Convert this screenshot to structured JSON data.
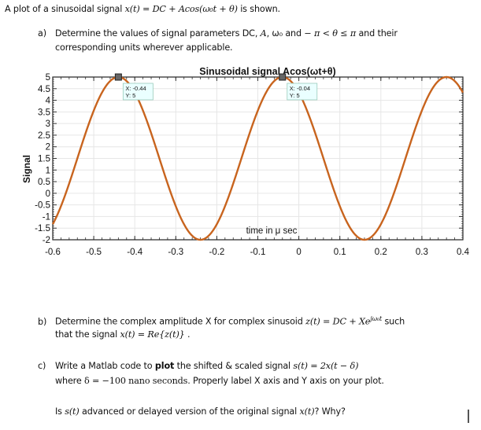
{
  "intro": {
    "prefix": "A plot of a sinusoidal signal ",
    "formula": "x(t) = DC + Acos(ω₀t + θ)",
    "suffix": " is shown."
  },
  "part_a": {
    "letter": "a)",
    "line1_prefix": "Determine the values of signal parameters DC, ",
    "line1_A": "A",
    "line1_mid": ", ω₀ and ",
    "line1_range": "− π < θ ≤ π",
    "line1_suffix": " and their",
    "line2": "corresponding units wherever applicable."
  },
  "part_b": {
    "letter": "b)",
    "line1_prefix": "Determine the complex amplitude X for complex sinusoid ",
    "line1_formula": "z(t) = DC + Xe",
    "line1_sup": "jω₀t",
    "line1_suffix": " such",
    "line2_prefix": "that the signal ",
    "line2_formula": "x(t) = Re{z(t)}",
    "line2_suffix": " ."
  },
  "part_c": {
    "letter": "c)",
    "line1_prefix": "Write a Matlab code to ",
    "line1_bold": "plot",
    "line1_mid": " the shifted & scaled signal ",
    "line1_formula": "s(t) = 2x(t − δ)",
    "line2_prefix": "where ",
    "line2_formula": "δ = −100",
    "line2_mid": " nano seconds.",
    "line2_suffix": " Properly label X axis and Y axis on your plot.",
    "question_prefix": "Is ",
    "question_s": "s(t)",
    "question_mid": " advanced or delayed version of the original signal ",
    "question_x": "x(t)",
    "question_suffix": "? Why?"
  },
  "chart_data": {
    "type": "line",
    "title": "Sinusoidal signal Acos(ωt+θ)",
    "xlabel": "time in μ sec",
    "ylabel": "Signal",
    "xlim": [
      -0.6,
      0.4
    ],
    "ylim": [
      -2,
      5
    ],
    "xticks": [
      -0.6,
      -0.5,
      -0.4,
      -0.3,
      -0.2,
      -0.1,
      0,
      0.1,
      0.2,
      0.3,
      0.4
    ],
    "xtick_labels": [
      "-0.6",
      "-0.5",
      "-0.4",
      "-0.3",
      "-0.2",
      "-0.1",
      "0",
      "0.1",
      "0.2",
      "0.3",
      "0.4"
    ],
    "yticks": [
      -2,
      -1.5,
      -1,
      -0.5,
      0,
      0.5,
      1,
      1.5,
      2,
      2.5,
      3,
      3.5,
      4,
      4.5,
      5
    ],
    "ytick_labels": [
      "-2",
      "-1.5",
      "-1",
      "-0.5",
      "0",
      "0.5",
      "1",
      "1.5",
      "2",
      "2.5",
      "3",
      "3.5",
      "4",
      "4.5",
      "5"
    ],
    "grid": true,
    "line_color": "#c8641e",
    "series": [
      {
        "name": "x(t)",
        "dc": 1.5,
        "amplitude": 3.5,
        "period": 0.4,
        "peak_time": -0.44,
        "x": [
          -0.6,
          -0.56,
          -0.52,
          -0.48,
          -0.44,
          -0.4,
          -0.36,
          -0.32,
          -0.28,
          -0.24,
          -0.2,
          -0.16,
          -0.12,
          -0.08,
          -0.04,
          0.0,
          0.04,
          0.08,
          0.12,
          0.16,
          0.2,
          0.24,
          0.28,
          0.32,
          0.36,
          0.4
        ],
        "y": [
          -1.33,
          0.42,
          2.58,
          4.33,
          5.0,
          4.33,
          2.58,
          0.42,
          -1.33,
          -2.0,
          -1.33,
          0.42,
          2.58,
          4.33,
          5.0,
          4.33,
          2.58,
          0.42,
          -1.33,
          -2.0,
          -1.33,
          0.42,
          2.58,
          4.33,
          5.0,
          4.33
        ]
      }
    ],
    "datatips": [
      {
        "x_label": "X: -0.44",
        "y_label": "Y: 5",
        "x": -0.44,
        "y": 5
      },
      {
        "x_label": "X: -0.04",
        "y_label": "Y: 5",
        "x": -0.04,
        "y": 5
      }
    ]
  }
}
